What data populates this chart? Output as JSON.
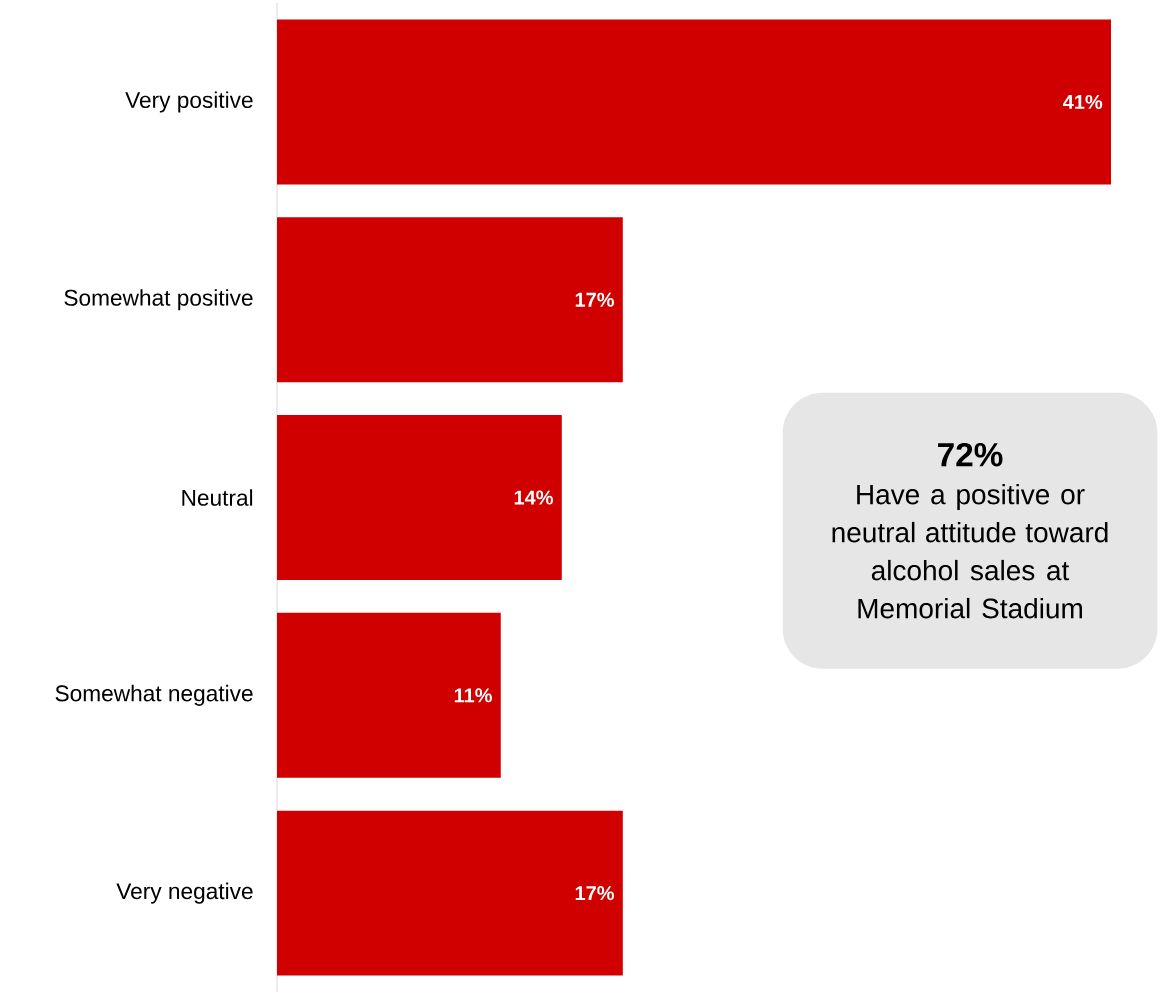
{
  "chart_data": {
    "type": "bar",
    "orientation": "horizontal",
    "categories": [
      "Very positive",
      "Somewhat positive",
      "Neutral",
      "Somewhat negative",
      "Very negative"
    ],
    "values": [
      41,
      17,
      14,
      11,
      17
    ],
    "value_labels": [
      "41%",
      "17%",
      "14%",
      "11%",
      "17%"
    ],
    "color": "#d00000",
    "annotations": [
      "72%",
      "Have a positive or neutral attitude toward alcohol sales at Memorial Stadium"
    ]
  }
}
